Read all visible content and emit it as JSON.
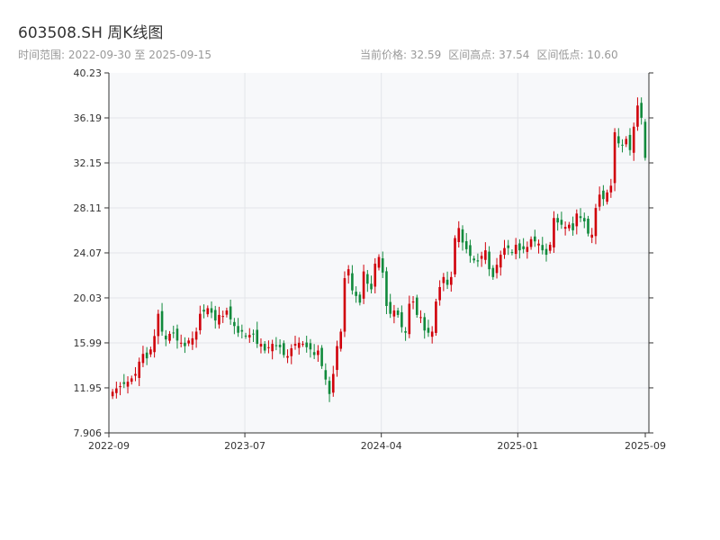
{
  "header": {
    "title": "603508.SH 周K线图",
    "subtitle": "时间范围: 2022-09-30 至 2025-09-15",
    "current_price": "当前价格: 32.59",
    "range_high": "区间高点: 37.54",
    "range_low": "区间低点: 10.60"
  },
  "colors": {
    "up": "#d0000a",
    "down": "#118a3c",
    "plot_bg": "#f7f8fa",
    "grid": "#e3e5ea",
    "axis": "#333333"
  },
  "chart_data": {
    "type": "candlestick",
    "title": "603508.SH 周K线图",
    "ylim": [
      7.906,
      40.23
    ],
    "yticks": [
      7.906,
      11.95,
      15.99,
      20.03,
      24.07,
      28.11,
      32.15,
      36.19,
      40.23
    ],
    "ytick_labels": [
      "7.906",
      "11.95",
      "15.99",
      "20.03",
      "24.07",
      "28.11",
      "32.15",
      "36.19",
      "40.23"
    ],
    "xtick_labels": [
      "2022-09",
      "2023-07",
      "2024-04",
      "2025-01",
      "2025-09"
    ],
    "xtick_dates": [
      "2022-09-30",
      "2023-07-01",
      "2024-04-01",
      "2025-01-01",
      "2025-09-15"
    ],
    "date_range": [
      "2022-09-30",
      "2025-09-15"
    ],
    "grid": true,
    "close_series": [
      11.6,
      11.9,
      12.1,
      12.3,
      12.5,
      12.8,
      13.2,
      14.3,
      15.0,
      14.6,
      15.4,
      16.6,
      18.6,
      17.0,
      16.3,
      16.8,
      16.9,
      16.2,
      16.0,
      15.7,
      16.2,
      16.4,
      17.0,
      18.6,
      18.8,
      19.1,
      18.7,
      18.0,
      18.5,
      18.4,
      18.9,
      18.1,
      17.5,
      16.9,
      17.0,
      16.6,
      16.7,
      16.8,
      15.9,
      15.9,
      15.3,
      15.6,
      15.9,
      15.7,
      15.6,
      14.9,
      14.8,
      15.5,
      15.9,
      16.0,
      15.9,
      15.6,
      15.4,
      14.9,
      15.3,
      13.9,
      12.7,
      11.4,
      13.2,
      15.7,
      17.0,
      21.8,
      22.6,
      20.7,
      20.2,
      19.6,
      22.4,
      21.3,
      20.8,
      23.1,
      23.7,
      22.3,
      19.3,
      18.6,
      18.9,
      18.5,
      17.4,
      16.9,
      19.5,
      19.7,
      18.5,
      18.3,
      17.1,
      16.9,
      17.0,
      19.7,
      21.0,
      21.9,
      21.2,
      21.9,
      25.4,
      26.3,
      25.0,
      24.4,
      23.8,
      23.4,
      23.3,
      23.8,
      24.3,
      22.6,
      21.9,
      23.0,
      23.9,
      24.5,
      24.5,
      24.1,
      24.8,
      24.3,
      24.4,
      24.6,
      25.3,
      25.1,
      24.9,
      24.3,
      23.9,
      24.8,
      27.2,
      26.8,
      26.6,
      26.4,
      26.6,
      26.1,
      27.6,
      27.2,
      26.9,
      25.8,
      25.7,
      28.1,
      29.3,
      28.9,
      29.5,
      30.1,
      34.9,
      33.9,
      33.7,
      34.3,
      33.3,
      35.4,
      37.3,
      36.2,
      32.6
    ]
  }
}
